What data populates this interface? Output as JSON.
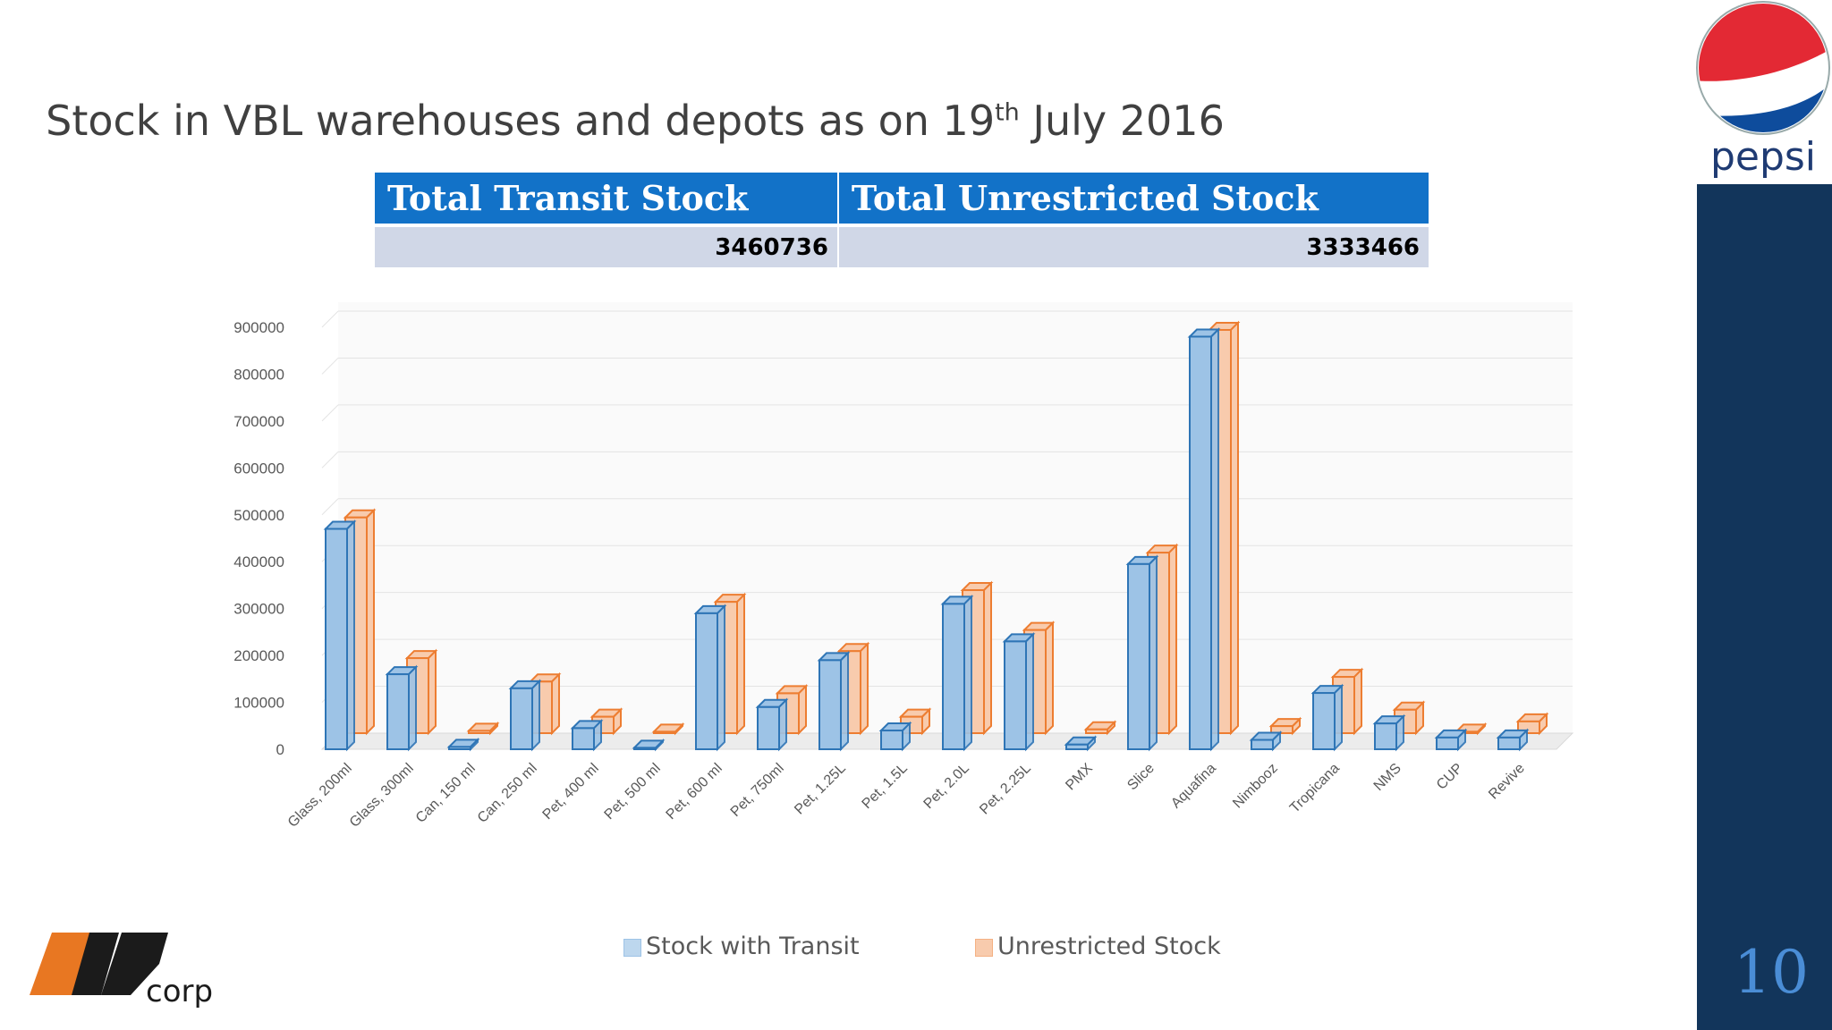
{
  "title": {
    "main": "Stock in VBL warehouses and depots as on 19",
    "sup": "th",
    "tail": " July 2016"
  },
  "summary": {
    "headers": [
      "Total Transit Stock",
      "Total Unrestricted Stock"
    ],
    "values": [
      "3460736",
      "3333466"
    ]
  },
  "chart_data": {
    "type": "bar",
    "style": "3d-clustered-column",
    "categories": [
      "Glass, 200ml",
      "Glass, 300ml",
      "Can, 150 ml",
      "Can, 250 ml",
      "Pet, 400 ml",
      "Pet, 500 ml",
      "Pet, 600 ml",
      "Pet, 750ml",
      "Pet, 1.25L",
      "Pet, 1.5L",
      "Pet, 2.0L",
      "Pet, 2.25L",
      "PMX",
      "Slice",
      "Aquafina",
      "Nimbooz",
      "Tropicana",
      "NMS",
      "CUP",
      "Revive"
    ],
    "series": [
      {
        "name": "Stock with Transit",
        "color": "#9DC3E6",
        "edge": "#2E75B6",
        "values": [
          470000,
          160000,
          5000,
          130000,
          45000,
          3000,
          290000,
          90000,
          190000,
          40000,
          310000,
          230000,
          10000,
          395000,
          880000,
          20000,
          120000,
          55000,
          25000,
          25000
        ]
      },
      {
        "name": "Unrestricted Stock",
        "color": "#F8CBAD",
        "edge": "#ED7D31",
        "values": [
          460000,
          160000,
          5000,
          110000,
          35000,
          3000,
          280000,
          85000,
          175000,
          35000,
          305000,
          220000,
          8000,
          385000,
          860000,
          15000,
          120000,
          50000,
          3000,
          25000
        ]
      }
    ],
    "yticks": [
      0,
      100000,
      200000,
      300000,
      400000,
      500000,
      600000,
      700000,
      800000,
      900000
    ],
    "ylim": [
      0,
      900000
    ],
    "grid": true,
    "legend": "bottom"
  },
  "sidebar": {
    "page_number": "10"
  },
  "logos": {
    "brand": "pepsi",
    "corp": "corp"
  }
}
